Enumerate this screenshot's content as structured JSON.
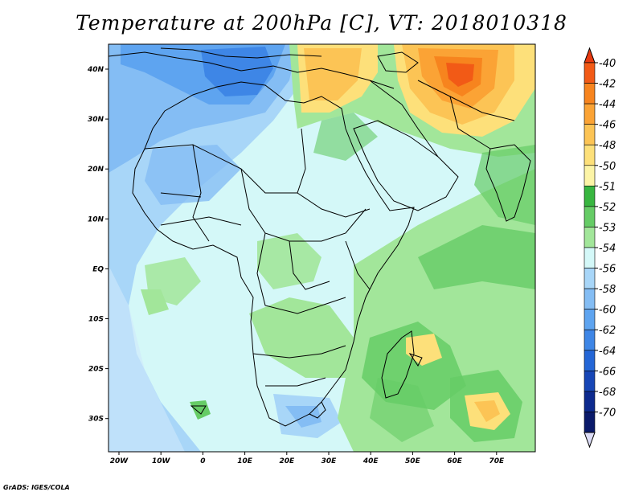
{
  "title": "Temperature at 200hPa [C], VT: 2018010318",
  "credit": "GrADS: IGES/COLA",
  "lon_ticks": [
    "20W",
    "10W",
    "0",
    "10E",
    "20E",
    "30E",
    "40E",
    "50E",
    "60E",
    "70E"
  ],
  "lat_ticks": [
    "40N",
    "30N",
    "20N",
    "10N",
    "EQ",
    "10S",
    "20S",
    "30S"
  ],
  "colorbar": {
    "labels": [
      "-40",
      "-42",
      "-44",
      "-46",
      "-48",
      "-50",
      "-51",
      "-52",
      "-53",
      "-54",
      "-56",
      "-58",
      "-60",
      "-62",
      "-64",
      "-66",
      "-68",
      "-70"
    ],
    "colors": [
      "#e83a10",
      "#f25a16",
      "#f7841e",
      "#fba335",
      "#fcc455",
      "#fde07a",
      "#fcf4a6",
      "#38b640",
      "#66cc66",
      "#a2e69a",
      "#d4f8f8",
      "#a8d6f8",
      "#84bdf4",
      "#5ea4f0",
      "#3e86e6",
      "#2466d6",
      "#1746b6",
      "#0d2a8e",
      "#0a1a6a",
      "#dcdcf6"
    ]
  },
  "map_colors": {
    "ocean_base": "#d4f8f8",
    "cold_band": "#a8d6f8",
    "very_cold": "#84bdf4",
    "coldest": "#3e86e6",
    "green_light": "#a2e69a",
    "green_mid": "#66cc66",
    "warm_yellow": "#fde07a",
    "warm_orange": "#fba335",
    "hot": "#f25a16"
  }
}
